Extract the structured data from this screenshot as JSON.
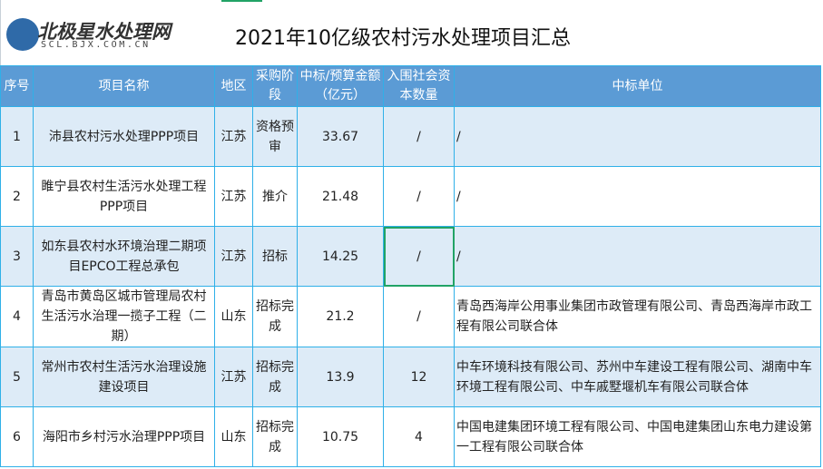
{
  "logo": {
    "cn": "北极星水处理网",
    "en": "SCL.BJX.COM.CN"
  },
  "title": "2021年10亿级农村污水处理项目汇总",
  "headers": [
    "序号",
    "项目名称",
    "地区",
    "采购阶段",
    "中标/预算金额（亿元）",
    "入围社会资本数量",
    "中标单位"
  ],
  "rows": [
    {
      "no": "1",
      "name": "沛县农村污水处理PPP项目",
      "region": "江苏",
      "stage": "资格预审",
      "amount": "33.67",
      "count": "/",
      "winner": "/"
    },
    {
      "no": "2",
      "name": "睢宁县农村生活污水处理工程PPP项目",
      "region": "江苏",
      "stage": "推介",
      "amount": "21.48",
      "count": "/",
      "winner": "/"
    },
    {
      "no": "3",
      "name": "如东县农村水环境治理二期项目EPCO工程总承包",
      "region": "江苏",
      "stage": "招标",
      "amount": "14.25",
      "count": "/",
      "winner": "/"
    },
    {
      "no": "4",
      "name": "青岛市黄岛区城市管理局农村生活污水治理一揽子工程（二期）",
      "region": "山东",
      "stage": "招标完成",
      "amount": "21.2",
      "count": "/",
      "winner": "青岛西海岸公用事业集团市政管理有限公司、青岛西海岸市政工程有限公司联合体"
    },
    {
      "no": "5",
      "name": "常州市农村生活污水治理设施建设项目",
      "region": "江苏",
      "stage": "招标完成",
      "amount": "13.9",
      "count": "12",
      "winner": "中车环境科技有限公司、苏州中车建设工程有限公司、湖南中车环境工程有限公司、中车戚墅堰机车有限公司联合体"
    },
    {
      "no": "6",
      "name": "海阳市乡村污水治理PPP项目",
      "region": "山东",
      "stage": "招标完成",
      "amount": "10.75",
      "count": "4",
      "winner": "中国电建集团环境工程有限公司、中国电建集团山东电力建设第一工程有限公司联合体"
    }
  ]
}
